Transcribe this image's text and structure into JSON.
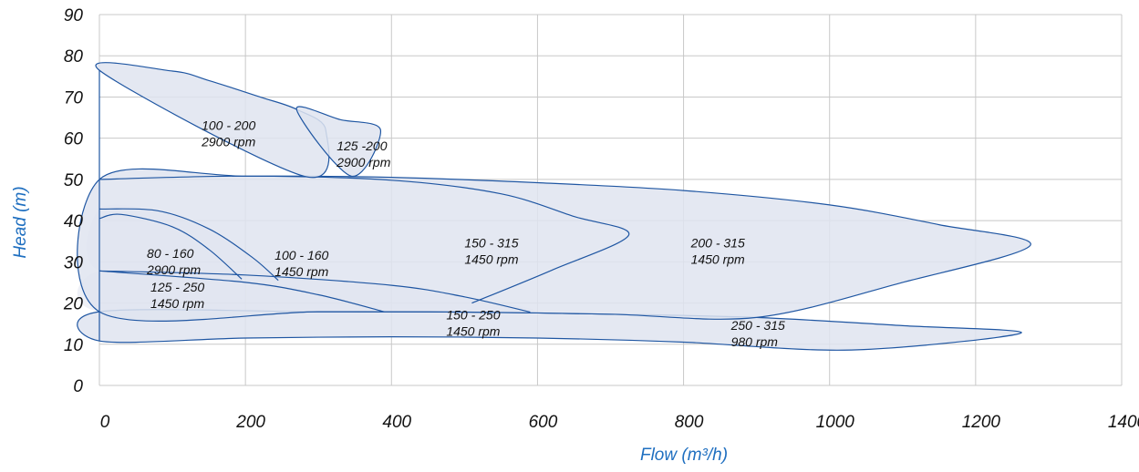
{
  "chart_data": {
    "type": "area",
    "xlabel": "Flow (m³/h)",
    "ylabel": "Head (m)",
    "xlim": [
      0,
      1400
    ],
    "ylim": [
      0,
      90
    ],
    "x_ticks": [
      "0",
      "200",
      "400",
      "600",
      "800",
      "1000",
      "1200",
      "1400"
    ],
    "y_ticks": [
      "0",
      "10",
      "20",
      "30",
      "40",
      "50",
      "60",
      "70",
      "80",
      "90"
    ],
    "grid": true,
    "colors": {
      "fill": "#dfe4f0",
      "stroke": "#1f56a2",
      "grid": "#c8c8c8",
      "axis_title": "#1f6fc0"
    },
    "series": [
      {
        "model": "250 - 315",
        "speed": "980 rpm",
        "label_at": [
          865,
          13.5
        ],
        "outline": [
          [
            0,
            10.8
          ],
          [
            200,
            11.5
          ],
          [
            400,
            11.8
          ],
          [
            600,
            11.5
          ],
          [
            800,
            10.5
          ],
          [
            1030,
            8.6
          ],
          [
            1262,
            12.7
          ],
          [
            1100,
            14.5
          ],
          [
            900,
            16.5
          ],
          [
            700,
            17.3
          ],
          [
            500,
            17.8
          ],
          [
            300,
            17.9
          ],
          [
            0,
            17.9
          ]
        ]
      },
      {
        "model": "200 - 315",
        "speed": "1450 rpm",
        "label_at": [
          810,
          33.5
        ],
        "outline": [
          [
            0,
            50
          ],
          [
            200,
            50.8
          ],
          [
            400,
            50.5
          ],
          [
            600,
            49.2
          ],
          [
            800,
            47.3
          ],
          [
            1000,
            43.8
          ],
          [
            1150,
            39
          ],
          [
            1275,
            34
          ],
          [
            1100,
            25
          ],
          [
            900,
            16.5
          ],
          [
            700,
            17.3
          ],
          [
            500,
            17.8
          ],
          [
            300,
            17.9
          ],
          [
            0,
            17.9
          ]
        ]
      },
      {
        "model": "150 - 315",
        "speed": "1450 rpm",
        "label_at": [
          500,
          33.5
        ],
        "outline": [
          [
            0,
            50
          ],
          [
            200,
            50.8
          ],
          [
            400,
            49.8
          ],
          [
            550,
            46.5
          ],
          [
            650,
            41
          ],
          [
            725,
            36.5
          ],
          [
            620,
            28
          ],
          [
            510,
            20
          ]
        ]
      },
      {
        "model": "150 - 250",
        "speed": "1450 rpm",
        "label_at": [
          475,
          16
        ],
        "outline": [
          [
            0,
            27.8
          ],
          [
            200,
            26.8
          ],
          [
            400,
            24.3
          ],
          [
            500,
            21.5
          ],
          [
            590,
            17.8
          ]
        ]
      },
      {
        "model": "125 - 250",
        "speed": "1450 rpm",
        "label_at": [
          70,
          22.8
        ],
        "outline": [
          [
            0,
            27.8
          ],
          [
            200,
            25
          ],
          [
            300,
            22
          ],
          [
            390,
            17.9
          ]
        ]
      },
      {
        "model": "100 - 160",
        "speed": "1450 rpm",
        "label_at": [
          240,
          30.5
        ],
        "outline": [
          [
            0,
            42.8
          ],
          [
            80,
            42.4
          ],
          [
            150,
            38
          ],
          [
            210,
            31
          ],
          [
            245,
            25.5
          ]
        ]
      },
      {
        "model": "80 - 160",
        "speed": "2900 rpm",
        "label_at": [
          65,
          31
        ],
        "outline": [
          [
            0,
            40.5
          ],
          [
            30,
            41.5
          ],
          [
            100,
            38.5
          ],
          [
            150,
            33
          ],
          [
            195,
            25.8
          ]
        ]
      },
      {
        "model": "100 - 200",
        "speed": "2900 rpm",
        "label_at": [
          140,
          62
        ],
        "outline": [
          [
            0,
            76.5
          ],
          [
            100,
            76.3
          ],
          [
            150,
            74
          ],
          [
            220,
            70
          ],
          [
            270,
            67
          ],
          [
            310,
            62
          ],
          [
            280,
            50.8
          ]
        ]
      },
      {
        "model": "125 -200",
        "speed": "2900 rpm",
        "label_at": [
          325,
          57
        ],
        "outline": [
          [
            270,
            67
          ],
          [
            330,
            64.5
          ],
          [
            385,
            62
          ],
          [
            345,
            50.8
          ]
        ]
      }
    ]
  }
}
